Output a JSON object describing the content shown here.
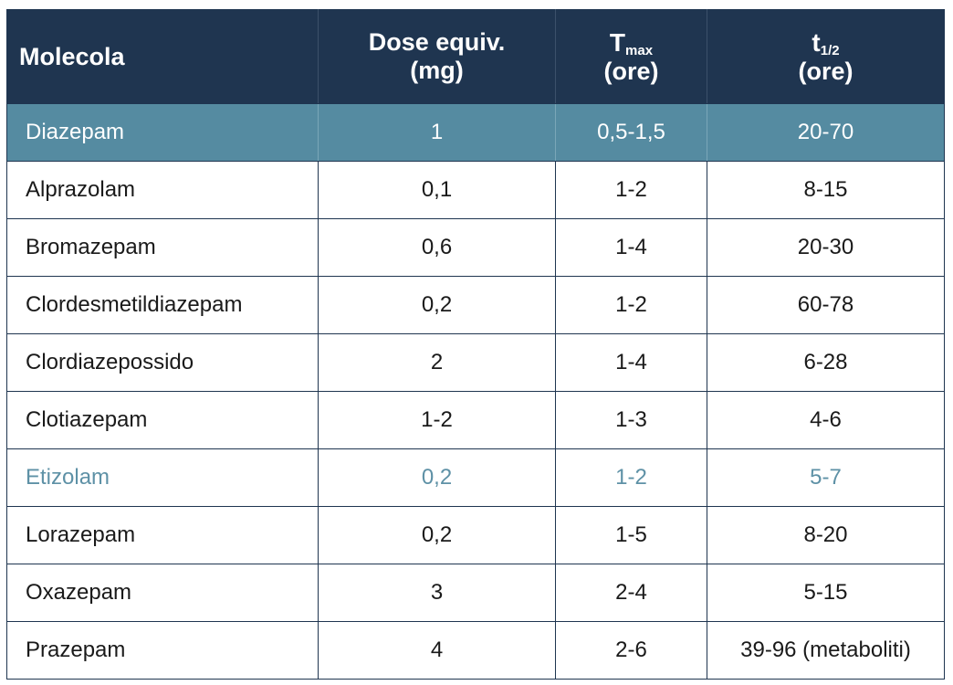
{
  "table": {
    "headers": {
      "molecola": "Molecola",
      "dose_line1": "Dose equiv.",
      "dose_line2": "(mg)",
      "tmax_symbol": "T",
      "tmax_sub": "max",
      "tmax_unit": "(ore)",
      "thalf_symbol": "t",
      "thalf_sub": "1/2",
      "thalf_unit": "(ore)"
    },
    "rows": [
      {
        "molecola": "Diazepam",
        "dose": "1",
        "tmax": "0,5-1,5",
        "thalf": "20-70",
        "style": "highlight"
      },
      {
        "molecola": "Alprazolam",
        "dose": "0,1",
        "tmax": "1-2",
        "thalf": "8-15",
        "style": "normal"
      },
      {
        "molecola": "Bromazepam",
        "dose": "0,6",
        "tmax": "1-4",
        "thalf": "20-30",
        "style": "normal"
      },
      {
        "molecola": "Clordesmetildiazepam",
        "dose": "0,2",
        "tmax": "1-2",
        "thalf": "60-78",
        "style": "normal"
      },
      {
        "molecola": "Clordiazepossido",
        "dose": "2",
        "tmax": "1-4",
        "thalf": "6-28",
        "style": "normal"
      },
      {
        "molecola": "Clotiazepam",
        "dose": "1-2",
        "tmax": "1-3",
        "thalf": "4-6",
        "style": "normal"
      },
      {
        "molecola": "Etizolam",
        "dose": "0,2",
        "tmax": "1-2",
        "thalf": "5-7",
        "style": "accent"
      },
      {
        "molecola": "Lorazepam",
        "dose": "0,2",
        "tmax": "1-5",
        "thalf": "8-20",
        "style": "normal"
      },
      {
        "molecola": "Oxazepam",
        "dose": "3",
        "tmax": "2-4",
        "thalf": "5-15",
        "style": "normal"
      },
      {
        "molecola": "Prazepam",
        "dose": "4",
        "tmax": "2-6",
        "thalf": "39-96 (metaboliti)",
        "style": "normal"
      }
    ]
  },
  "colors": {
    "header_bg": "#1f3550",
    "highlight_row_bg": "#558ba1",
    "accent_text": "#5e91a6",
    "grid": "#1f3550"
  }
}
